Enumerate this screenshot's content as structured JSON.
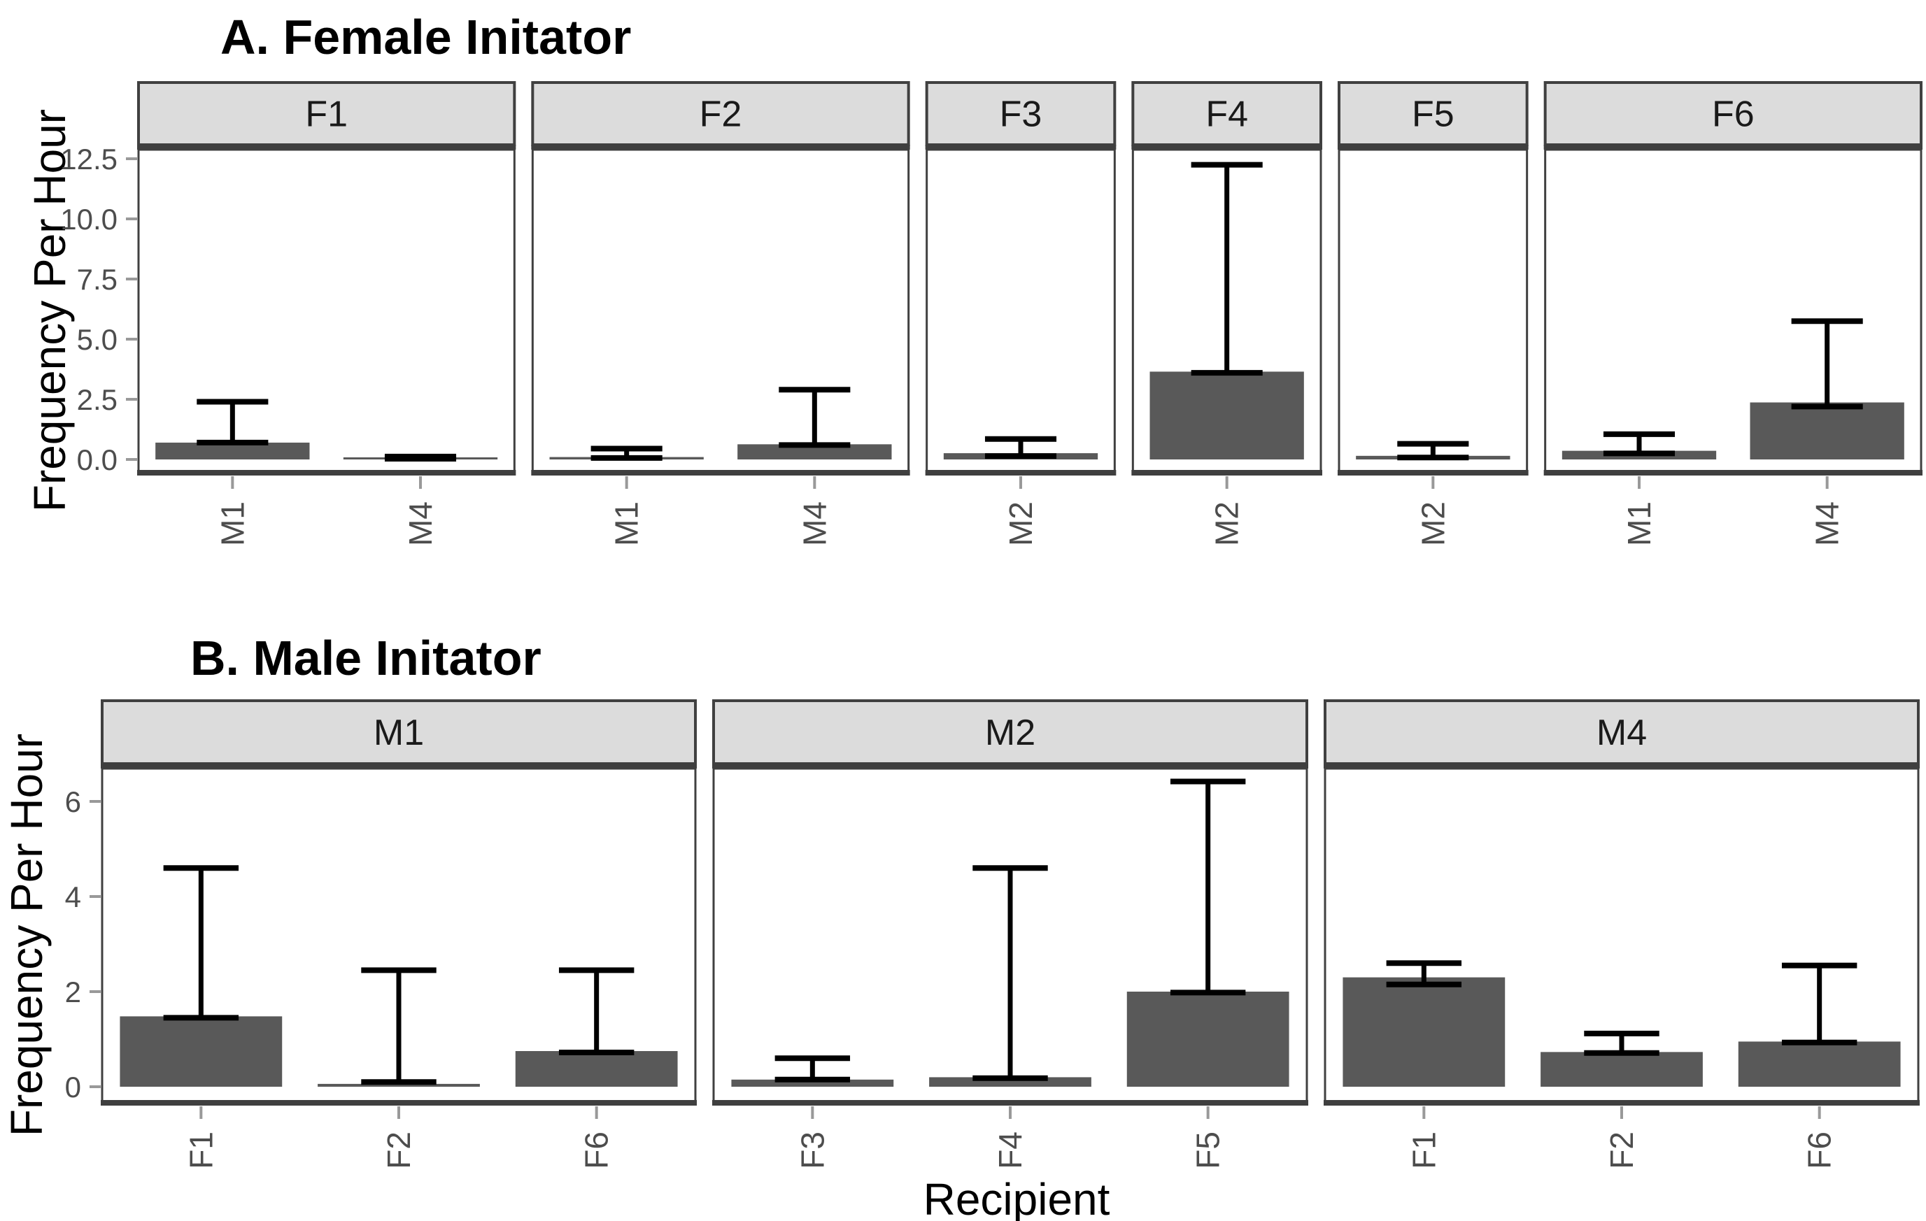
{
  "figure": {
    "background": "#FFFFFF"
  },
  "style": {
    "bar_fill": "#595959",
    "errorbar_color": "#000000",
    "strip_fill": "#DCDCDC",
    "strip_border": "#404040",
    "panel_border": "#404040",
    "axis_line_color": "#3F3F3F",
    "tick_color": "#999999",
    "axis_text_color": "#4D4D4D",
    "title_color": "#000000"
  },
  "chart_data": [
    {
      "type": "bar",
      "panel": "A",
      "title": "A. Female Initator",
      "ylabel": "Frequency Per Hour",
      "xlabel": "",
      "legend": false,
      "grid": false,
      "ylim": [
        -0.52,
        12.91
      ],
      "yticks": [
        0,
        2.5,
        5,
        7.5,
        10,
        12.5
      ],
      "ytick_labels": [
        "0.0",
        "2.5",
        "5.0",
        "7.5",
        "10.0",
        "12.5"
      ],
      "facets": [
        {
          "label": "F1",
          "bars": [
            {
              "category": "M1",
              "value": 0.7,
              "err_low": 0.7,
              "err_high": 2.4
            },
            {
              "category": "M4",
              "value": 0.06,
              "err_low": 0.03,
              "err_high": 0.12
            }
          ]
        },
        {
          "label": "F2",
          "bars": [
            {
              "category": "M1",
              "value": 0.1,
              "err_low": 0.06,
              "err_high": 0.45
            },
            {
              "category": "M4",
              "value": 0.63,
              "err_low": 0.6,
              "err_high": 2.9
            }
          ]
        },
        {
          "label": "F3",
          "bars": [
            {
              "category": "M2",
              "value": 0.26,
              "err_low": 0.14,
              "err_high": 0.85
            }
          ]
        },
        {
          "label": "F4",
          "bars": [
            {
              "category": "M2",
              "value": 3.65,
              "err_low": 3.6,
              "err_high": 12.25
            }
          ]
        },
        {
          "label": "F5",
          "bars": [
            {
              "category": "M2",
              "value": 0.15,
              "err_low": 0.08,
              "err_high": 0.65
            }
          ]
        },
        {
          "label": "F6",
          "bars": [
            {
              "category": "M1",
              "value": 0.36,
              "err_low": 0.25,
              "err_high": 1.05
            },
            {
              "category": "M4",
              "value": 2.37,
              "err_low": 2.2,
              "err_high": 5.75
            }
          ]
        }
      ]
    },
    {
      "type": "bar",
      "panel": "B",
      "title": "B. Male Initator",
      "ylabel": "Frequency Per Hour",
      "xlabel": "Recipient",
      "legend": false,
      "grid": false,
      "ylim": [
        -0.32,
        6.74
      ],
      "yticks": [
        0,
        2,
        4,
        6
      ],
      "ytick_labels": [
        "0",
        "2",
        "4",
        "6"
      ],
      "facets": [
        {
          "label": "M1",
          "bars": [
            {
              "category": "F1",
              "value": 1.48,
              "err_low": 1.45,
              "err_high": 4.6
            },
            {
              "category": "F2",
              "value": 0.06,
              "err_low": 0.1,
              "err_high": 2.45
            },
            {
              "category": "F6",
              "value": 0.75,
              "err_low": 0.72,
              "err_high": 2.45
            }
          ]
        },
        {
          "label": "M2",
          "bars": [
            {
              "category": "F3",
              "value": 0.15,
              "err_low": 0.15,
              "err_high": 0.6
            },
            {
              "category": "F4",
              "value": 0.2,
              "err_low": 0.18,
              "err_high": 4.6
            },
            {
              "category": "F5",
              "value": 2.0,
              "err_low": 1.98,
              "err_high": 6.42
            }
          ]
        },
        {
          "label": "M4",
          "bars": [
            {
              "category": "F1",
              "value": 2.3,
              "err_low": 2.15,
              "err_high": 2.6
            },
            {
              "category": "F2",
              "value": 0.73,
              "err_low": 0.71,
              "err_high": 1.12
            },
            {
              "category": "F6",
              "value": 0.95,
              "err_low": 0.93,
              "err_high": 2.55
            }
          ]
        }
      ]
    }
  ]
}
